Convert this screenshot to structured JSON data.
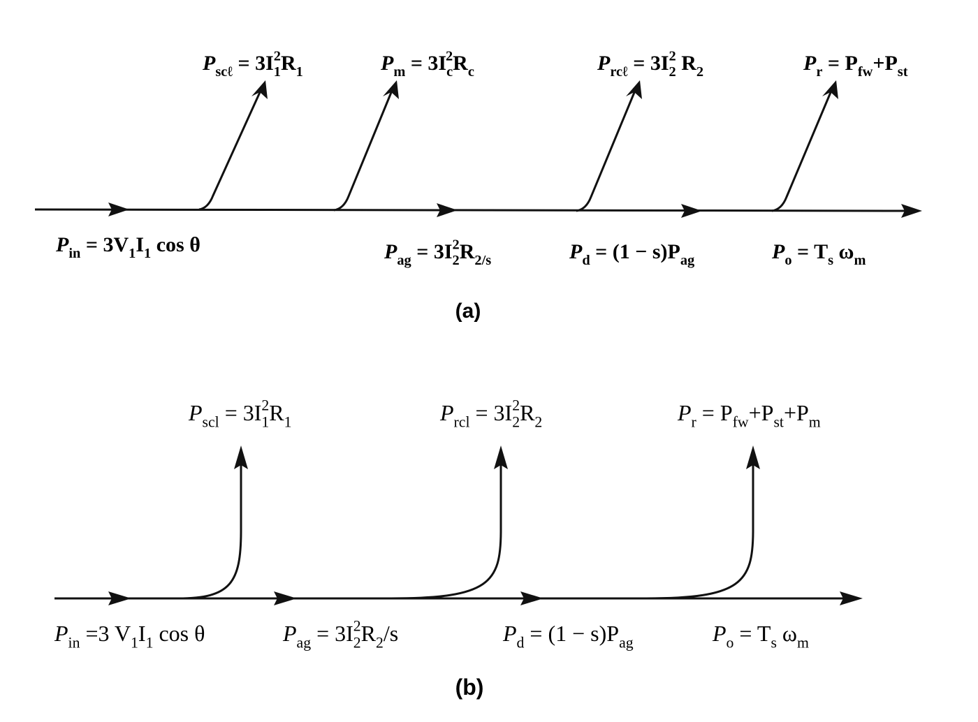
{
  "diagrams": [
    {
      "losses": [
        [
          "P",
          {
            "sub": "scℓ"
          },
          " = 3I",
          {
            "sub": "1"
          },
          {
            "sup": "2"
          },
          "R",
          {
            "sub": "1"
          }
        ],
        [
          "P",
          {
            "sub": "m"
          },
          " = 3I",
          {
            "sub": "c"
          },
          {
            "sup": "2"
          },
          "R",
          {
            "sub": "c"
          }
        ],
        [
          "P",
          {
            "sub": "rcℓ"
          },
          " = 3I",
          {
            "sub": "2"
          },
          {
            "sup": "2"
          },
          " R",
          {
            "sub": "2"
          }
        ],
        [
          "P",
          {
            "sub": "r"
          },
          " = P",
          {
            "sub": "fw"
          },
          "+P",
          {
            "sub": "st"
          }
        ]
      ],
      "flows": [
        [
          "P",
          {
            "sub": "in"
          },
          " = 3V",
          {
            "sub": "1"
          },
          "I",
          {
            "sub": "1"
          },
          " cos θ"
        ],
        [
          "P",
          {
            "sub": "ag"
          },
          " = 3I",
          {
            "sub": "2"
          },
          {
            "sup": "2"
          },
          "R",
          {
            "sub": "2/s"
          }
        ],
        [
          "P",
          {
            "sub": "d"
          },
          " = (1 − s)P",
          {
            "sub": "ag"
          }
        ],
        [
          "P",
          {
            "sub": "o"
          },
          " = T",
          {
            "sub": "s"
          },
          " ω",
          {
            "sub": "m"
          }
        ]
      ],
      "caption": "(a)"
    },
    {
      "losses": [
        [
          "P",
          {
            "sub": "scl"
          },
          " = 3I",
          {
            "sub": "1"
          },
          {
            "sup": "2"
          },
          "R",
          {
            "sub": "1"
          }
        ],
        [
          "P",
          {
            "sub": "rcl"
          },
          " = 3I",
          {
            "sub": "2"
          },
          {
            "sup": "2"
          },
          "R",
          {
            "sub": "2"
          }
        ],
        [
          "P",
          {
            "sub": "r"
          },
          " = P",
          {
            "sub": "fw"
          },
          "+P",
          {
            "sub": "st"
          },
          "+P",
          {
            "sub": "m"
          }
        ]
      ],
      "flows": [
        [
          "P",
          {
            "sub": "in"
          },
          " =3 V",
          {
            "sub": "1"
          },
          "I",
          {
            "sub": "1"
          },
          " cos θ"
        ],
        [
          "P",
          {
            "sub": "ag"
          },
          " = 3I",
          {
            "sub": "2"
          },
          {
            "sup": "2"
          },
          "R",
          {
            "sub": "2"
          },
          "/s"
        ],
        [
          "P",
          {
            "sub": "d"
          },
          " = (1 − s)P",
          {
            "sub": "ag"
          }
        ],
        [
          "P",
          {
            "sub": "o"
          },
          " = T",
          {
            "sub": "s"
          },
          " ω",
          {
            "sub": "m"
          }
        ]
      ],
      "caption": "(b)"
    }
  ]
}
